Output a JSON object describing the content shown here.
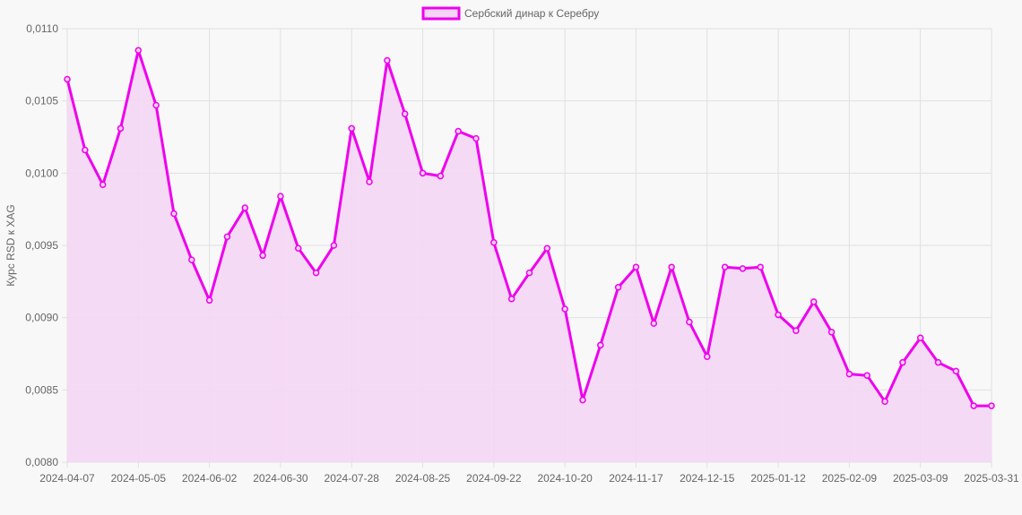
{
  "chart_data": {
    "type": "line",
    "title": "",
    "legend": {
      "label": "Сербский динар к Серебру",
      "position": "top"
    },
    "ylabel": "Курс RSD к XAG",
    "xlabel": "",
    "ylim": [
      0.008,
      0.011
    ],
    "yticks": [
      "0,0080",
      "0,0085",
      "0,0090",
      "0,0095",
      "0,0100",
      "0,0105",
      "0,0110"
    ],
    "ytick_values": [
      0.008,
      0.0085,
      0.009,
      0.0095,
      0.01,
      0.0105,
      0.011
    ],
    "xtick_labels": [
      "2024-04-07",
      "2024-05-05",
      "2024-06-02",
      "2024-06-30",
      "2024-07-28",
      "2024-08-25",
      "2024-09-22",
      "2024-10-20",
      "2024-11-17",
      "2024-12-15",
      "2025-01-12",
      "2025-02-09",
      "2025-03-09",
      "2025-03-31"
    ],
    "xtick_indices": [
      0,
      4,
      8,
      12,
      16,
      20,
      24,
      28,
      32,
      36,
      40,
      44,
      48,
      52
    ],
    "grid": true,
    "line_color": "#ee00ee",
    "fill_color": "#f5d5f5",
    "values": [
      0.01065,
      0.01016,
      0.00992,
      0.01031,
      0.01085,
      0.01047,
      0.00972,
      0.0094,
      0.00912,
      0.00956,
      0.00976,
      0.00943,
      0.00984,
      0.00948,
      0.00931,
      0.0095,
      0.01031,
      0.00994,
      0.01078,
      0.01041,
      0.01,
      0.00998,
      0.01029,
      0.01024,
      0.00952,
      0.00913,
      0.00931,
      0.00948,
      0.00906,
      0.00843,
      0.00881,
      0.00921,
      0.00935,
      0.00896,
      0.00935,
      0.00897,
      0.00873,
      0.00935,
      0.00934,
      0.00935,
      0.00902,
      0.00891,
      0.00911,
      0.0089,
      0.00861,
      0.0086,
      0.00842,
      0.00869,
      0.00886,
      0.00869,
      0.00863,
      0.00839,
      0.00839
    ]
  }
}
